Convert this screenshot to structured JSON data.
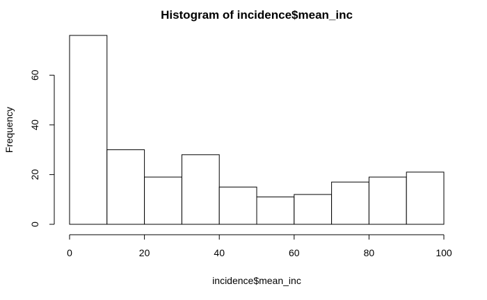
{
  "chart_data": {
    "type": "bar",
    "title": "Histogram of incidence$mean_inc",
    "xlabel": "incidence$mean_inc",
    "ylabel": "Frequency",
    "bins": [
      {
        "from": 0,
        "to": 10,
        "count": 76
      },
      {
        "from": 10,
        "to": 20,
        "count": 30
      },
      {
        "from": 20,
        "to": 30,
        "count": 19
      },
      {
        "from": 30,
        "to": 40,
        "count": 28
      },
      {
        "from": 40,
        "to": 50,
        "count": 15
      },
      {
        "from": 50,
        "to": 60,
        "count": 11
      },
      {
        "from": 60,
        "to": 70,
        "count": 12
      },
      {
        "from": 70,
        "to": 80,
        "count": 17
      },
      {
        "from": 80,
        "to": 90,
        "count": 19
      },
      {
        "from": 90,
        "to": 100,
        "count": 21
      }
    ],
    "xlim": [
      0,
      100
    ],
    "ylim": [
      0,
      76
    ],
    "xticks": [
      "0",
      "20",
      "40",
      "60",
      "80",
      "100"
    ],
    "yticks": [
      "0",
      "20",
      "40",
      "60"
    ],
    "grid": false,
    "bar_fill": "#ffffff",
    "bar_stroke": "#000000"
  }
}
